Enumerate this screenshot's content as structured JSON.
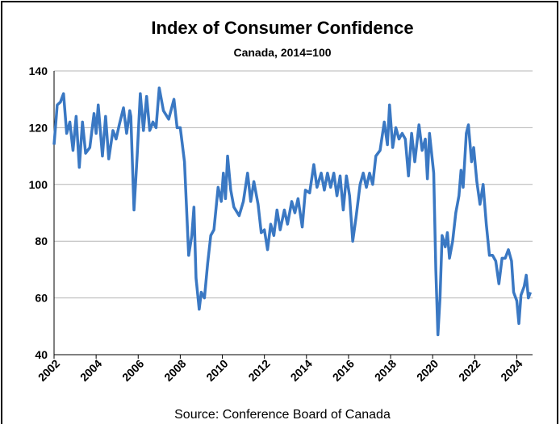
{
  "chart_data": {
    "type": "line",
    "title": "Index of Consumer Confidence",
    "subtitle": "Canada, 2014=100",
    "source": "Source: Conference Board of Canada",
    "x": [
      2002.0,
      2002.15,
      2002.3,
      2002.45,
      2002.6,
      2002.75,
      2002.9,
      2003.05,
      2003.2,
      2003.35,
      2003.5,
      2003.7,
      2003.9,
      2004.0,
      2004.1,
      2004.3,
      2004.45,
      2004.6,
      2004.8,
      2004.95,
      2005.1,
      2005.3,
      2005.45,
      2005.6,
      2005.65,
      2005.8,
      2005.95,
      2006.1,
      2006.25,
      2006.4,
      2006.55,
      2006.7,
      2006.85,
      2007.0,
      2007.2,
      2007.45,
      2007.7,
      2007.85,
      2008.0,
      2008.2,
      2008.4,
      2008.55,
      2008.65,
      2008.75,
      2008.9,
      2009.0,
      2009.15,
      2009.3,
      2009.45,
      2009.6,
      2009.8,
      2009.95,
      2010.05,
      2010.15,
      2010.25,
      2010.4,
      2010.55,
      2010.8,
      2011.0,
      2011.2,
      2011.35,
      2011.5,
      2011.7,
      2011.85,
      2012.0,
      2012.15,
      2012.3,
      2012.45,
      2012.6,
      2012.75,
      2012.95,
      2013.1,
      2013.3,
      2013.45,
      2013.6,
      2013.8,
      2013.95,
      2014.15,
      2014.35,
      2014.5,
      2014.7,
      2014.85,
      2015.0,
      2015.15,
      2015.3,
      2015.45,
      2015.6,
      2015.75,
      2015.9,
      2016.05,
      2016.2,
      2016.35,
      2016.55,
      2016.7,
      2016.85,
      2017.0,
      2017.15,
      2017.3,
      2017.5,
      2017.7,
      2017.85,
      2017.95,
      2018.1,
      2018.25,
      2018.4,
      2018.55,
      2018.7,
      2018.85,
      2019.0,
      2019.15,
      2019.35,
      2019.5,
      2019.65,
      2019.75,
      2019.85,
      2020.05,
      2020.15,
      2020.25,
      2020.35,
      2020.45,
      2020.6,
      2020.7,
      2020.8,
      2020.95,
      2021.1,
      2021.25,
      2021.35,
      2021.45,
      2021.6,
      2021.7,
      2021.85,
      2021.95,
      2022.1,
      2022.25,
      2022.4,
      2022.55,
      2022.7,
      2022.85,
      2023.0,
      2023.15,
      2023.3,
      2023.45,
      2023.6,
      2023.75,
      2023.85,
      2024.0,
      2024.1,
      2024.2,
      2024.35,
      2024.45,
      2024.55,
      2024.65
    ],
    "series": [
      {
        "color": "#3a78c3",
        "values": [
          114,
          128,
          129,
          132,
          118,
          122,
          112,
          124,
          106,
          122,
          111,
          113,
          125,
          118,
          128,
          110,
          124,
          109,
          119,
          116,
          121,
          127,
          118,
          126,
          124,
          91,
          110,
          132,
          119,
          131,
          119,
          122,
          120,
          134,
          126,
          123,
          130,
          120,
          120,
          108,
          75,
          82,
          92,
          67,
          56,
          62,
          60,
          72,
          82,
          84,
          99,
          94,
          104,
          95,
          110,
          98,
          92,
          89,
          94,
          104,
          94,
          101,
          93,
          83,
          84,
          77,
          86,
          82,
          91,
          84,
          91,
          86,
          94,
          90,
          95,
          85,
          98,
          97,
          107,
          99,
          104,
          98,
          104,
          99,
          104,
          96,
          103,
          91,
          103,
          96,
          80,
          88,
          100,
          104,
          99,
          104,
          100,
          110,
          112,
          122,
          114,
          128,
          113,
          120,
          116,
          118,
          116,
          103,
          118,
          108,
          121,
          112,
          116,
          102,
          118,
          104,
          70,
          47,
          60,
          82,
          78,
          83,
          74,
          80,
          90,
          96,
          105,
          99,
          118,
          121,
          108,
          113,
          101,
          93,
          100,
          86,
          75,
          75,
          73,
          65,
          74,
          74,
          77,
          73,
          62,
          59,
          51,
          61,
          64,
          68,
          60,
          62
        ]
      }
    ],
    "xlim": [
      2002,
      2024.75
    ],
    "ylim": [
      40,
      140
    ],
    "xticks": [
      2002,
      2004,
      2006,
      2008,
      2010,
      2012,
      2014,
      2016,
      2018,
      2020,
      2022,
      2024
    ],
    "yticks": [
      40,
      60,
      80,
      100,
      120,
      140
    ],
    "grid": true
  }
}
